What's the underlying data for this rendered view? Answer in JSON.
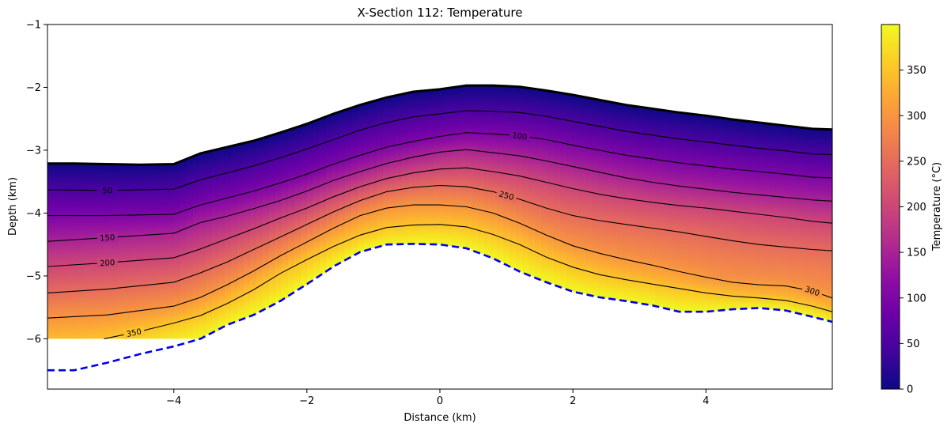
{
  "chart_data": {
    "type": "heatmap",
    "title": "X-Section 112: Temperature",
    "xlabel": "Distance (km)",
    "ylabel": "Depth (km)",
    "xlim": [
      -5.9,
      5.9
    ],
    "ylim": [
      -6.8,
      -1.0
    ],
    "xticks": [
      -4,
      -2,
      0,
      2,
      4
    ],
    "xtick_labels": [
      "−4",
      "−2",
      "0",
      "2",
      "4"
    ],
    "yticks": [
      -1,
      -2,
      -3,
      -4,
      -5,
      -6
    ],
    "ytick_labels": [
      "−1",
      "−2",
      "−3",
      "−4",
      "−5",
      "−6"
    ],
    "colormap": "plasma",
    "colorbar": {
      "label": "Temperature (°C)",
      "range": [
        0,
        400
      ],
      "ticks": [
        0,
        50,
        100,
        150,
        200,
        250,
        300,
        350
      ],
      "tick_labels": [
        "0",
        "50",
        "100",
        "150",
        "200",
        "250",
        "300",
        "350"
      ]
    },
    "surface_top": {
      "x": [
        -5.9,
        -5.5,
        -5.0,
        -4.5,
        -4.0,
        -3.6,
        -3.2,
        -2.8,
        -2.4,
        -2.0,
        -1.6,
        -1.2,
        -0.8,
        -0.4,
        0.0,
        0.4,
        0.8,
        1.2,
        1.6,
        2.0,
        2.4,
        2.8,
        3.2,
        3.6,
        4.0,
        4.4,
        4.8,
        5.2,
        5.6,
        5.9
      ],
      "y": [
        -3.21,
        -3.21,
        -3.22,
        -3.23,
        -3.22,
        -3.05,
        -2.95,
        -2.85,
        -2.72,
        -2.58,
        -2.42,
        -2.28,
        -2.16,
        -2.07,
        -2.03,
        -1.97,
        -1.97,
        -1.99,
        -2.05,
        -2.12,
        -2.2,
        -2.28,
        -2.34,
        -2.4,
        -2.45,
        -2.51,
        -2.56,
        -2.61,
        -2.66,
        -2.67
      ]
    },
    "base_line": {
      "name": "",
      "color": "#0000ee",
      "style": "dashed",
      "x": [
        -5.9,
        -5.5,
        -5.0,
        -4.5,
        -4.0,
        -3.6,
        -3.2,
        -2.8,
        -2.4,
        -2.0,
        -1.6,
        -1.2,
        -0.8,
        -0.4,
        0.0,
        0.4,
        0.8,
        1.2,
        1.6,
        2.0,
        2.4,
        2.8,
        3.2,
        3.6,
        4.0,
        4.4,
        4.8,
        5.2,
        5.6,
        5.9
      ],
      "y": [
        -6.5,
        -6.5,
        -6.38,
        -6.24,
        -6.12,
        -6.0,
        -5.78,
        -5.62,
        -5.4,
        -5.13,
        -4.85,
        -4.62,
        -4.5,
        -4.49,
        -4.5,
        -4.56,
        -4.72,
        -4.93,
        -5.1,
        -5.25,
        -5.34,
        -5.4,
        -5.47,
        -5.57,
        -5.57,
        -5.53,
        -5.51,
        -5.55,
        -5.65,
        -5.73
      ]
    },
    "data_extent_left_bottom": -6.0,
    "contours": [
      {
        "level": 50,
        "label": "50",
        "label_x": -5.0,
        "x": [
          -5.9,
          -5.0,
          -4.0,
          -3.6,
          -3.2,
          -2.8,
          -2.4,
          -2.0,
          -1.6,
          -1.2,
          -0.8,
          -0.4,
          0.0,
          0.4,
          0.8,
          1.2,
          1.6,
          2.0,
          2.4,
          2.8,
          3.2,
          3.6,
          4.0,
          4.4,
          4.8,
          5.2,
          5.6,
          5.9
        ],
        "y": [
          -3.63,
          -3.64,
          -3.62,
          -3.47,
          -3.36,
          -3.25,
          -3.12,
          -2.98,
          -2.83,
          -2.68,
          -2.56,
          -2.47,
          -2.42,
          -2.37,
          -2.38,
          -2.4,
          -2.46,
          -2.54,
          -2.62,
          -2.7,
          -2.76,
          -2.82,
          -2.87,
          -2.92,
          -2.97,
          -3.01,
          -3.06,
          -3.07
        ]
      },
      {
        "level": 100,
        "label": "100",
        "label_x": 1.2,
        "x": [
          -5.9,
          -5.0,
          -4.0,
          -3.6,
          -3.2,
          -2.8,
          -2.4,
          -2.0,
          -1.6,
          -1.2,
          -0.8,
          -0.4,
          0.0,
          0.4,
          0.8,
          1.2,
          1.6,
          2.0,
          2.4,
          2.8,
          3.2,
          3.6,
          4.0,
          4.4,
          4.8,
          5.2,
          5.6,
          5.9
        ],
        "y": [
          -4.04,
          -4.04,
          -4.02,
          -3.87,
          -3.76,
          -3.65,
          -3.52,
          -3.38,
          -3.22,
          -3.08,
          -2.95,
          -2.86,
          -2.78,
          -2.72,
          -2.74,
          -2.77,
          -2.83,
          -2.92,
          -3.0,
          -3.08,
          -3.14,
          -3.2,
          -3.25,
          -3.3,
          -3.34,
          -3.38,
          -3.43,
          -3.44
        ]
      },
      {
        "level": 150,
        "label": "150",
        "label_x": -5.0,
        "x": [
          -5.9,
          -5.0,
          -4.0,
          -3.6,
          -3.2,
          -2.8,
          -2.4,
          -2.0,
          -1.6,
          -1.2,
          -0.8,
          -0.4,
          0.0,
          0.4,
          0.8,
          1.2,
          1.6,
          2.0,
          2.4,
          2.8,
          3.2,
          3.6,
          4.0,
          4.4,
          4.8,
          5.2,
          5.6,
          5.9
        ],
        "y": [
          -4.45,
          -4.39,
          -4.32,
          -4.15,
          -4.05,
          -3.93,
          -3.8,
          -3.65,
          -3.48,
          -3.34,
          -3.21,
          -3.11,
          -3.03,
          -2.99,
          -3.04,
          -3.09,
          -3.17,
          -3.26,
          -3.35,
          -3.44,
          -3.51,
          -3.57,
          -3.62,
          -3.67,
          -3.71,
          -3.75,
          -3.79,
          -3.81
        ]
      },
      {
        "level": 200,
        "label": "200",
        "label_x": -5.0,
        "x": [
          -5.9,
          -5.0,
          -4.0,
          -3.6,
          -3.2,
          -2.8,
          -2.4,
          -2.0,
          -1.6,
          -1.2,
          -0.8,
          -0.4,
          0.0,
          0.4,
          0.8,
          1.2,
          1.6,
          2.0,
          2.4,
          2.8,
          3.2,
          3.6,
          4.0,
          4.4,
          4.8,
          5.2,
          5.6,
          5.9
        ],
        "y": [
          -4.85,
          -4.79,
          -4.71,
          -4.57,
          -4.41,
          -4.25,
          -4.08,
          -3.92,
          -3.74,
          -3.58,
          -3.45,
          -3.36,
          -3.3,
          -3.28,
          -3.34,
          -3.41,
          -3.51,
          -3.61,
          -3.7,
          -3.77,
          -3.83,
          -3.88,
          -3.92,
          -3.97,
          -4.02,
          -4.07,
          -4.13,
          -4.16
        ]
      },
      {
        "level": 250,
        "label": "250",
        "label_x": 1.0,
        "x": [
          -5.9,
          -5.0,
          -4.0,
          -3.6,
          -3.2,
          -2.8,
          -2.4,
          -2.0,
          -1.6,
          -1.2,
          -0.8,
          -0.4,
          0.0,
          0.4,
          0.8,
          1.2,
          1.6,
          2.0,
          2.4,
          2.8,
          3.2,
          3.6,
          4.0,
          4.4,
          4.8,
          5.2,
          5.6,
          5.9
        ],
        "y": [
          -5.27,
          -5.21,
          -5.1,
          -4.95,
          -4.78,
          -4.58,
          -4.38,
          -4.18,
          -3.98,
          -3.8,
          -3.66,
          -3.59,
          -3.56,
          -3.58,
          -3.66,
          -3.78,
          -3.92,
          -4.04,
          -4.12,
          -4.18,
          -4.24,
          -4.3,
          -4.37,
          -4.44,
          -4.5,
          -4.54,
          -4.58,
          -4.6
        ]
      },
      {
        "level": 300,
        "label": "300",
        "label_x": 5.6,
        "x": [
          -5.9,
          -5.0,
          -4.0,
          -3.6,
          -3.2,
          -2.8,
          -2.4,
          -2.0,
          -1.6,
          -1.2,
          -0.8,
          -0.4,
          0.0,
          0.4,
          0.8,
          1.2,
          1.6,
          2.0,
          2.4,
          2.8,
          3.2,
          3.6,
          4.0,
          4.4,
          4.8,
          5.2,
          5.6,
          5.9
        ],
        "y": [
          -5.67,
          -5.62,
          -5.48,
          -5.34,
          -5.14,
          -4.92,
          -4.68,
          -4.46,
          -4.24,
          -4.04,
          -3.92,
          -3.87,
          -3.87,
          -3.9,
          -4.0,
          -4.16,
          -4.35,
          -4.52,
          -4.64,
          -4.74,
          -4.83,
          -4.93,
          -5.02,
          -5.1,
          -5.14,
          -5.16,
          -5.24,
          -5.35
        ]
      },
      {
        "level": 350,
        "label": "350",
        "label_x": -4.6,
        "x": [
          -5.05,
          -4.5,
          -4.0,
          -3.6,
          -3.2,
          -2.8,
          -2.4,
          -2.0,
          -1.6,
          -1.2,
          -0.8,
          -0.4,
          0.0,
          0.4,
          0.8,
          1.2,
          1.6,
          2.0,
          2.4,
          2.8,
          3.2,
          3.6,
          4.0,
          4.4,
          4.8,
          5.2,
          5.6,
          5.9
        ],
        "y": [
          -6.0,
          -5.88,
          -5.75,
          -5.63,
          -5.44,
          -5.22,
          -4.96,
          -4.74,
          -4.53,
          -4.35,
          -4.23,
          -4.19,
          -4.18,
          -4.22,
          -4.34,
          -4.5,
          -4.7,
          -4.86,
          -4.98,
          -5.06,
          -5.13,
          -5.2,
          -5.27,
          -5.32,
          -5.35,
          -5.39,
          -5.48,
          -5.57
        ]
      }
    ]
  }
}
